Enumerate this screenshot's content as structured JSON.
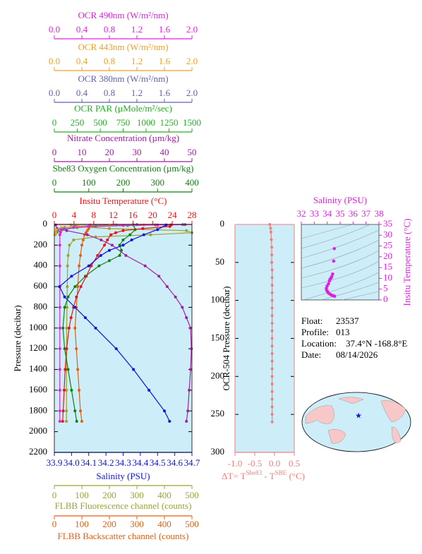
{
  "chart_data": [
    {
      "type": "profile",
      "y_label": "Pressure (decibar)",
      "ylim": [
        0,
        2200
      ],
      "yticks": [
        0,
        200,
        400,
        600,
        800,
        1000,
        1200,
        1400,
        1600,
        1800,
        2000,
        2200
      ],
      "axes": [
        {
          "side": "top",
          "label": "OCR 490nm (W/m²/nm)",
          "color": "#e020e0",
          "xlim": [
            0,
            2
          ],
          "xticks": [
            {
              "value": 0,
              "label": "0.0"
            },
            0.4,
            0.8,
            1.2,
            1.6,
            {
              "value": 2,
              "label": "2.0"
            }
          ]
        },
        {
          "side": "top",
          "label": "OCR 443nm (W/m²/nm)",
          "color": "#f0a020",
          "xlim": [
            0,
            2
          ],
          "xticks": [
            {
              "value": 0,
              "label": "0.0"
            },
            0.4,
            0.8,
            1.2,
            1.6,
            {
              "value": 2,
              "label": "2.0"
            }
          ]
        },
        {
          "side": "top",
          "label": "OCR 380nm (W/m²/nm)",
          "color": "#6060b0",
          "xlim": [
            0,
            2
          ],
          "xticks": [
            {
              "value": 0,
              "label": "0.0"
            },
            0.4,
            0.8,
            1.2,
            1.6,
            {
              "value": 2,
              "label": "2.0"
            }
          ]
        },
        {
          "side": "top",
          "label": "OCR PAR (µMole/m²/sec)",
          "color": "#20b020",
          "xlim": [
            0,
            1500
          ],
          "xticks": [
            0,
            250,
            500,
            750,
            1000,
            1250,
            1500
          ]
        },
        {
          "side": "top",
          "label": "Nitrate Concentration (µm/kg)",
          "color": "#a020a0",
          "xlim": [
            0,
            50
          ],
          "xticks": [
            0,
            10,
            20,
            30,
            40,
            50
          ]
        },
        {
          "side": "top",
          "label": "Sbe83 Oxygen Concentration (µm/kg)",
          "color": "#108010",
          "xlim": [
            0,
            400
          ],
          "xticks": [
            0,
            100,
            200,
            300,
            400
          ]
        },
        {
          "side": "top",
          "label": "Insitu Temperature (°C)",
          "color": "#f01010",
          "xlim": [
            0,
            28
          ],
          "xticks": [
            0,
            4,
            8,
            12,
            16,
            20,
            24,
            28
          ]
        },
        {
          "side": "bottom",
          "label": "Salinity (PSU)",
          "color": "#1010e0",
          "xlim": [
            33.9,
            34.7
          ],
          "xticks": [
            33.9,
            {
              "value": 34,
              "label": "34.0"
            },
            34.1,
            34.2,
            34.3,
            34.4,
            34.5,
            34.6,
            34.7
          ]
        },
        {
          "side": "bottom",
          "label": "FLBB Fluorescence channel (counts)",
          "color": "#a0a030",
          "xlim": [
            0,
            500
          ],
          "xticks": [
            0,
            100,
            200,
            300,
            400,
            500
          ]
        },
        {
          "side": "bottom",
          "label": "FLBB Backscatter channel (counts)",
          "color": "#e06010",
          "xlim": [
            0,
            500
          ],
          "xticks": [
            0,
            100,
            200,
            300,
            400,
            500
          ]
        }
      ],
      "series": [
        {
          "axis": 9,
          "color": "#e06010",
          "pressure": [
            5,
            20,
            40,
            60,
            80,
            100,
            150,
            200,
            300,
            400,
            600,
            800,
            1000,
            1200,
            1400,
            1600,
            1800,
            1900
          ],
          "values": [
            130,
            128,
            125,
            120,
            115,
            110,
            105,
            100,
            95,
            90,
            85,
            80,
            75,
            80,
            85,
            90,
            95,
            100
          ]
        },
        {
          "axis": 8,
          "color": "#a0a030",
          "pressure": [
            5,
            20,
            40,
            60,
            80,
            100,
            120,
            150,
            200,
            300,
            400,
            600,
            800,
            1000,
            1200,
            1400,
            1600,
            1800,
            1900
          ],
          "values": [
            60,
            80,
            200,
            480,
            500,
            350,
            150,
            70,
            55,
            50,
            48,
            47,
            46,
            45,
            45,
            44,
            44,
            44,
            44
          ]
        },
        {
          "axis": 5,
          "color": "#108010",
          "pressure": [
            5,
            50,
            100,
            150,
            200,
            250,
            300,
            350,
            400,
            500,
            600,
            700,
            800,
            1000,
            1200,
            1400,
            1600,
            1800,
            1900
          ],
          "values": [
            230,
            235,
            220,
            200,
            190,
            195,
            190,
            160,
            130,
            90,
            60,
            40,
            30,
            25,
            30,
            40,
            50,
            60,
            65
          ]
        },
        {
          "axis": 4,
          "color": "#a020a0",
          "pressure": [
            5,
            40,
            60,
            100,
            150,
            200,
            300,
            400,
            500,
            600,
            700,
            800,
            900,
            1000,
            1200,
            1400,
            1600,
            1800,
            1900
          ],
          "values": [
            0.5,
            1,
            4.5,
            12,
            17,
            21,
            26,
            33,
            38,
            41,
            44,
            46.5,
            48,
            49.5,
            49.8,
            49.5,
            49,
            48.5,
            48
          ]
        },
        {
          "axis": 3,
          "color": "#20b020",
          "pressure": [
            2,
            5,
            10,
            20,
            30,
            50,
            75,
            100
          ],
          "values": [
            1400,
            1100,
            800,
            450,
            250,
            90,
            30,
            10
          ]
        },
        {
          "axis": 2,
          "color": "#6060b0",
          "pressure": [
            2,
            5,
            10,
            20,
            30,
            50,
            75,
            100
          ],
          "values": [
            1.2,
            0.9,
            0.6,
            0.3,
            0.15,
            0.05,
            0.02,
            0.01
          ]
        },
        {
          "axis": 1,
          "color": "#f0a020",
          "pressure": [
            2,
            5,
            10,
            20,
            30,
            50,
            75,
            100
          ],
          "values": [
            1.7,
            1.3,
            0.8,
            0.35,
            0.1,
            0.03,
            0.02,
            0.01
          ]
        },
        {
          "axis": 0,
          "color": "#e020e0",
          "pressure": [
            2,
            5,
            10,
            20,
            30,
            50,
            75,
            100,
            200,
            400,
            600,
            800,
            1000,
            1200,
            1400,
            1600,
            1800,
            1900
          ],
          "values": [
            1.9,
            1.5,
            1,
            0.5,
            0.28,
            0.1,
            0.09,
            0.08,
            0.08,
            0.08,
            0.08,
            0.08,
            0.08,
            0.08,
            0.08,
            0.08,
            0.08,
            0.08
          ]
        },
        {
          "axis": 6,
          "color": "#f01010",
          "pressure": [
            5,
            20,
            40,
            60,
            80,
            100,
            150,
            200,
            300,
            400,
            500,
            600,
            700,
            800,
            900,
            1000,
            1200,
            1400,
            1600,
            1800,
            1900
          ],
          "values": [
            23.8,
            23.5,
            18,
            14,
            12.5,
            11.5,
            10.8,
            10.2,
            8.8,
            7.5,
            6.5,
            5.4,
            4.5,
            3.9,
            3.4,
            3,
            2.5,
            2.2,
            2,
            1.8,
            1.7
          ]
        },
        {
          "axis": 7,
          "color": "#1010e0",
          "pressure": [
            5,
            50,
            100,
            150,
            200,
            250,
            300,
            400,
            500,
            600,
            700,
            800,
            900,
            1000,
            1200,
            1400,
            1600,
            1800,
            1900
          ],
          "values": [
            34.55,
            34.5,
            34.42,
            34.35,
            34.3,
            34.22,
            34.17,
            34.1,
            34,
            33.93,
            33.96,
            34.02,
            34.08,
            34.14,
            34.26,
            34.36,
            34.45,
            34.54,
            34.57
          ]
        }
      ]
    },
    {
      "type": "profile",
      "y_label": "OCR-504 Pressure (decibar)",
      "ylim": [
        0,
        300
      ],
      "yticks": [
        0,
        50,
        100,
        150,
        200,
        250,
        300
      ],
      "axes": [
        {
          "side": "bottom",
          "label": [
            "ΔT= T",
            "Sbe83",
            " - T",
            "SBE",
            " (°C)"
          ],
          "color": "#f08080",
          "xlim": [
            -1,
            0.5
          ],
          "xticks": [
            {
              "value": -1,
              "label": "-1.0"
            },
            {
              "value": -0.5,
              "label": "-0.5"
            },
            {
              "value": 0,
              "label": "0.0"
            },
            0.5
          ]
        }
      ],
      "series": [
        {
          "axis": 0,
          "color": "#f08080",
          "pressure": [
            0,
            5,
            10,
            20,
            30,
            40,
            50,
            60,
            70,
            80,
            90,
            100,
            110,
            120,
            130,
            140,
            150,
            160,
            170,
            180,
            190,
            200,
            210,
            220,
            230,
            240,
            250,
            260
          ],
          "values": [
            -0.12,
            -0.1,
            -0.09,
            -0.08,
            -0.07,
            -0.07,
            -0.07,
            -0.06,
            -0.06,
            -0.06,
            -0.06,
            -0.06,
            -0.06,
            -0.06,
            -0.06,
            -0.06,
            -0.06,
            -0.06,
            -0.06,
            -0.06,
            -0.06,
            -0.06,
            -0.06,
            -0.06,
            -0.06,
            -0.06,
            -0.06,
            -0.06
          ]
        }
      ]
    },
    {
      "type": "ts",
      "x_label": "Salinity (PSU)",
      "y_label": "Insitu Temperature (°C)",
      "color": "#e020e0",
      "xlim": [
        32,
        38
      ],
      "xticks": [
        32,
        33,
        34,
        35,
        36,
        37,
        38
      ],
      "ylim": [
        0,
        35
      ],
      "yticks": [
        0,
        5,
        10,
        15,
        20,
        25,
        30,
        35
      ],
      "x": [
        34.57,
        34.54,
        34.45,
        34.36,
        34.26,
        34.14,
        34.08,
        34.02,
        33.96,
        33.93,
        34,
        34.1,
        34.17,
        34.22,
        34.3,
        34.35,
        34.42,
        34.5,
        34.55
      ],
      "values": [
        1.7,
        1.8,
        2,
        2.2,
        2.5,
        3,
        3.4,
        3.9,
        4.5,
        5.4,
        6.5,
        7.5,
        8.8,
        9.6,
        10.2,
        10.8,
        12,
        18,
        23.8
      ]
    }
  ],
  "info": {
    "rows": [
      [
        "Float:",
        "23537"
      ],
      [
        "Profile:",
        "013"
      ],
      [
        "Location:",
        "37.4°N  -168.8°E"
      ],
      [
        "Date:",
        "08/14/2026"
      ]
    ]
  }
}
